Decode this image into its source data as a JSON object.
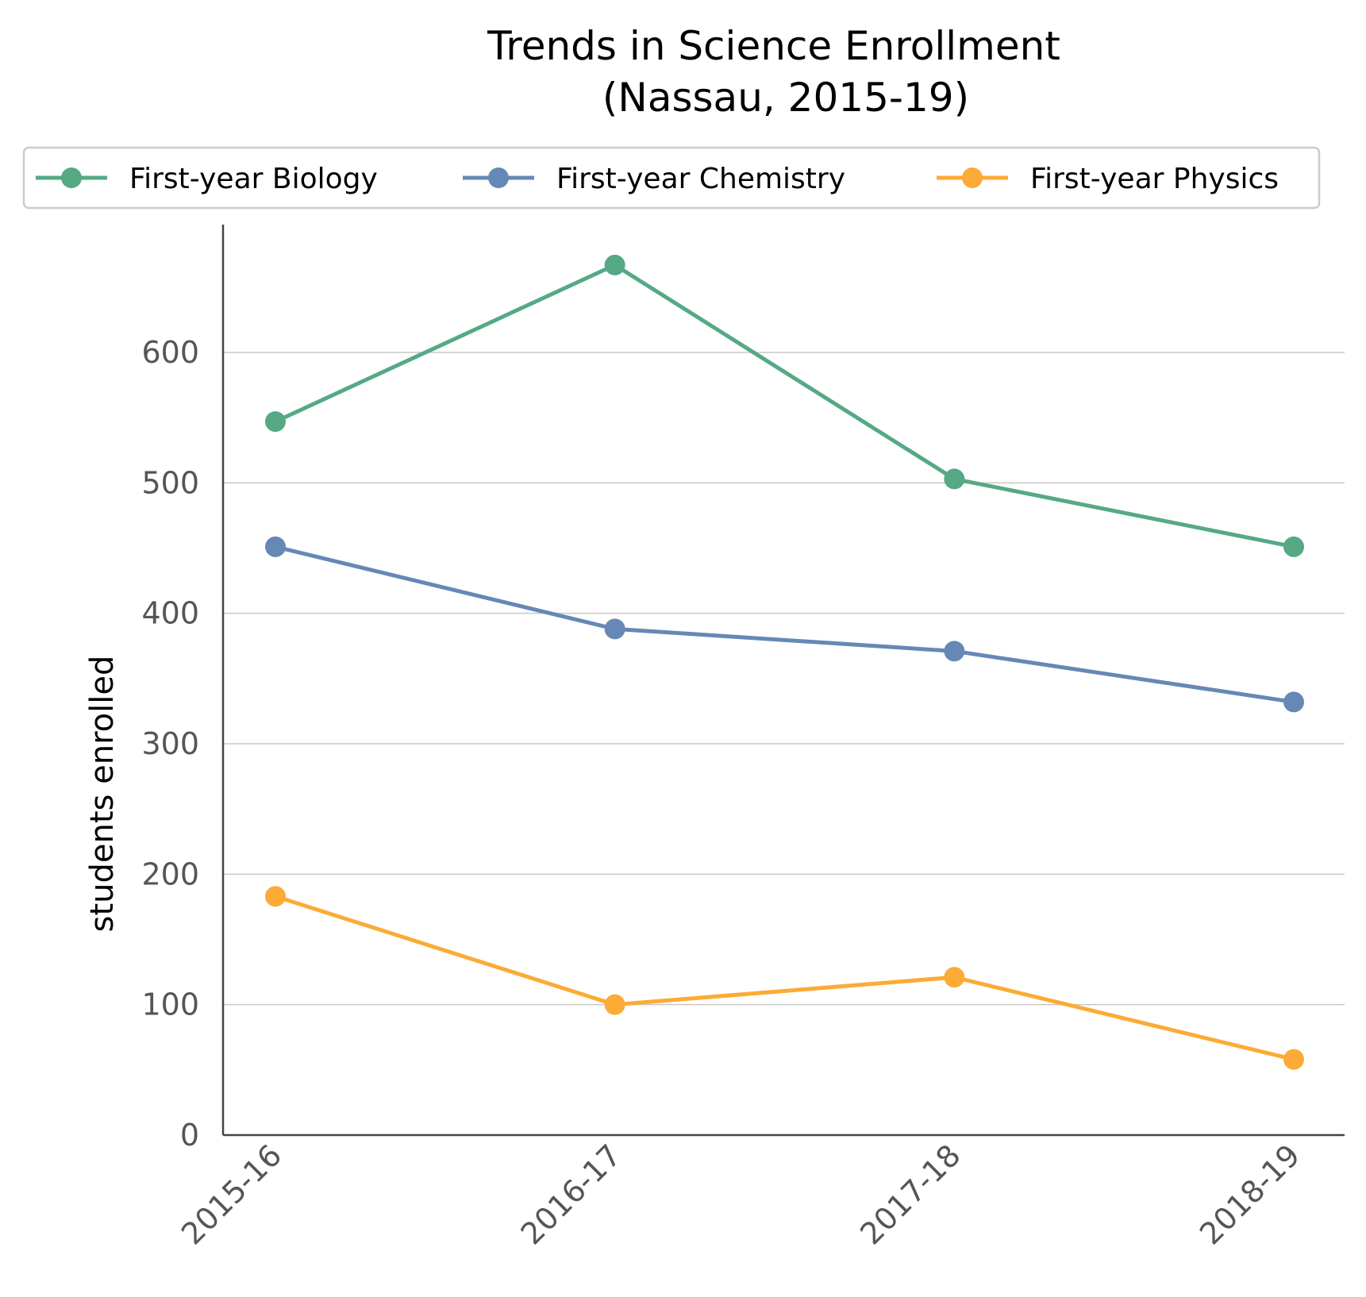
{
  "chart_data": {
    "type": "line",
    "title": "Trends in Science Enrollment",
    "subtitle": "(Nassau, 2015-19)",
    "xlabel": "",
    "ylabel": "students enrolled",
    "categories": [
      "2015-16",
      "2016-17",
      "2017-18",
      "2018-19"
    ],
    "ylim": [
      0,
      697
    ],
    "yticks": [
      0,
      100,
      200,
      300,
      400,
      500,
      600
    ],
    "grid": "horizontal",
    "legend_position": "top",
    "series": [
      {
        "name": "First-year Biology",
        "color": "#55a985",
        "values": [
          547,
          667,
          503,
          451
        ]
      },
      {
        "name": "First-year Chemistry",
        "color": "#6688b5",
        "values": [
          451,
          388,
          371,
          332
        ]
      },
      {
        "name": "First-year Physics",
        "color": "#fbab36",
        "values": [
          183,
          100,
          121,
          58
        ]
      }
    ]
  }
}
